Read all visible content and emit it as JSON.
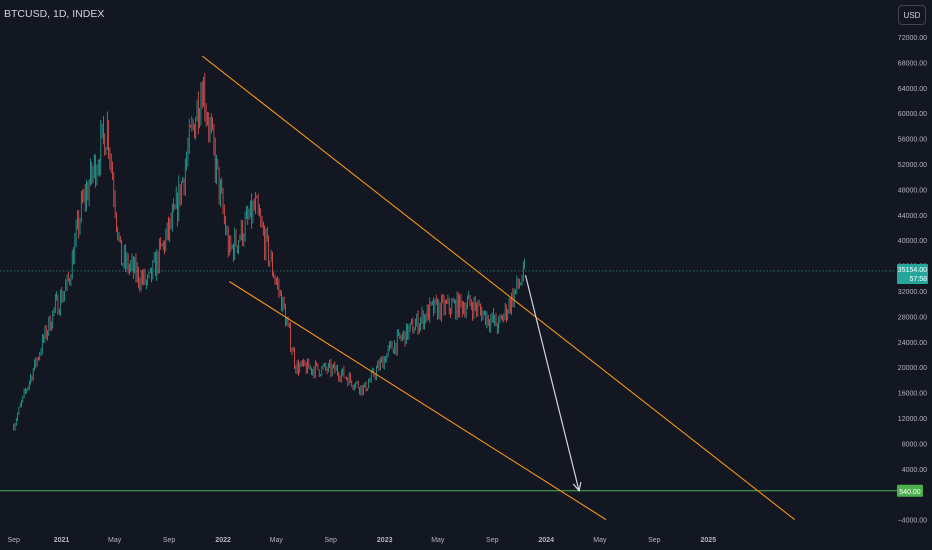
{
  "header": {
    "symbol": "BTCUSD, 1D, INDEX",
    "currency_button": "USD"
  },
  "colors": {
    "background": "#131722",
    "candle_up": "#26a69a",
    "candle_down": "#ef5350",
    "trendline": "#f7931a",
    "support_line": "#4caf50",
    "projection_arrow": "#d1d4dc",
    "axis_text": "#b2b5be"
  },
  "chart_data": {
    "type": "candlestick",
    "title": "BTCUSD, 1D, INDEX",
    "y_axis": {
      "position": "right",
      "ticks": [
        "72000.00",
        "68000.00",
        "64000.00",
        "60000.00",
        "56000.00",
        "52000.00",
        "48000.00",
        "44000.00",
        "40000.00",
        "36000.00",
        "32000.00",
        "28000.00",
        "24000.00",
        "20000.00",
        "16000.00",
        "12000.00",
        "8000.00",
        "4000.00",
        "−4000.00"
      ],
      "range": [
        -4000,
        72000
      ]
    },
    "x_axis": {
      "ticks": [
        "Sep",
        "2021",
        "May",
        "Sep",
        "2022",
        "May",
        "Sep",
        "2023",
        "May",
        "Sep",
        "2024",
        "May",
        "Sep",
        "2025"
      ]
    },
    "price_series_approx": [
      {
        "date": "2020-09",
        "close": 10800
      },
      {
        "date": "2020-12",
        "close": 29000
      },
      {
        "date": "2021-01",
        "close": 33000
      },
      {
        "date": "2021-02",
        "close": 45000
      },
      {
        "date": "2021-04",
        "close": 58000
      },
      {
        "date": "2021-05",
        "close": 37000
      },
      {
        "date": "2021-07",
        "close": 33000
      },
      {
        "date": "2021-09",
        "close": 44000
      },
      {
        "date": "2021-11",
        "close": 65000
      },
      {
        "date": "2022-01",
        "close": 38000
      },
      {
        "date": "2022-03",
        "close": 45000
      },
      {
        "date": "2022-05",
        "close": 30000
      },
      {
        "date": "2022-06",
        "close": 20000
      },
      {
        "date": "2022-09",
        "close": 19500
      },
      {
        "date": "2022-11",
        "close": 16500
      },
      {
        "date": "2023-01",
        "close": 23000
      },
      {
        "date": "2023-04",
        "close": 29000
      },
      {
        "date": "2023-07",
        "close": 30000
      },
      {
        "date": "2023-09",
        "close": 26500
      },
      {
        "date": "2023-11",
        "close": 35154
      }
    ],
    "current_price": {
      "label": "35154.00",
      "countdown": "57:58",
      "value": 35154
    },
    "support_level": {
      "label": "540.00",
      "value": 540
    },
    "annotations": {
      "upper_trendline": {
        "from": {
          "date": "2021-11",
          "price": 69000
        },
        "to": {
          "date": "2025-07",
          "price": -4000
        }
      },
      "lower_trendline": {
        "from": {
          "date": "2022-01",
          "price": 33500
        },
        "to": {
          "date": "2024-05",
          "price": -4000
        }
      },
      "projection_arrow": {
        "from": {
          "date": "2023-11",
          "price": 34500
        },
        "to": {
          "date": "2024-03",
          "price": 540
        }
      }
    }
  }
}
